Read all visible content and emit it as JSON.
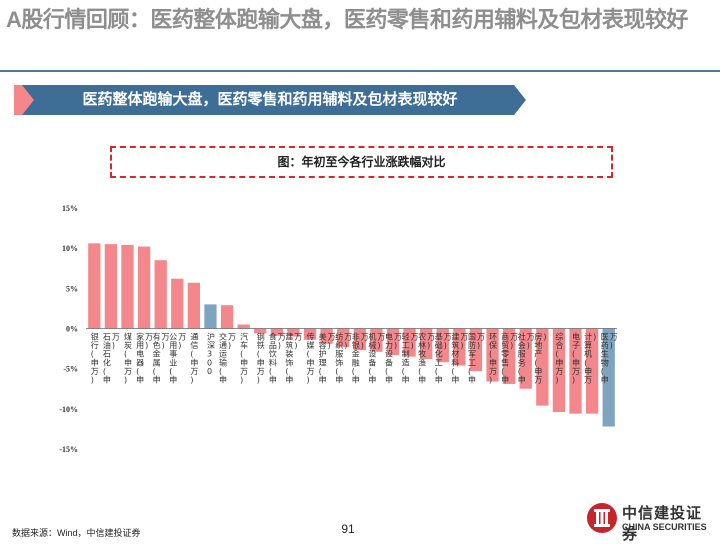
{
  "page": {
    "title": "A股行情回顾：医药整体跑输大盘，医药零售和药用辅料及包材表现较好",
    "banner": "医药整体跑输大盘，医药零售和药用辅料及包材表现较好",
    "source": "数据来源：Wind，中信建投证券",
    "page_number": "91",
    "logo_cn": "中信建投证券",
    "logo_en": "CHINA SECURITIES",
    "colors": {
      "banner": "#3e6e95",
      "banner_accent": "#f4878b",
      "bar_default": "#f4878b",
      "bar_highlight": "#7ea4c0",
      "title_dash": "#d9262b"
    }
  },
  "chart_data": {
    "type": "bar",
    "title": "图：年初至今各行业涨跌幅对比",
    "ylim": [
      -15,
      15
    ],
    "yticks": [
      15,
      10,
      5,
      0,
      -5,
      -10,
      -15
    ],
    "ytick_labels": [
      "15%",
      "10%",
      "5%",
      "0%",
      "-5%",
      "-10%",
      "-15%"
    ],
    "grid": false,
    "categories": [
      "银行(申万)",
      "石油石化(申万)",
      "煤炭(申万)",
      "家用电器(申万)",
      "有色金属(申万)",
      "公用事业(申万)",
      "通信(申万)",
      "沪深300",
      "交通运输(申万)",
      "汽车(申万)",
      "钢铁(申万)",
      "食品饮料(申万)",
      "建筑装饰(申万)",
      "传媒(申万)",
      "美容护理(申万)",
      "纺织服饰(申万)",
      "非银金融(申万)",
      "机械设备(申万)",
      "电力设备(申万)",
      "轻工制造(申万)",
      "农林牧渔(申万)",
      "基础化工(申万)",
      "建筑材料(申万)",
      "国防军工(申万)",
      "环保(申万)",
      "商贸零售(申万)",
      "社会服务(申万)",
      "房地产(申万)",
      "综合(申万)",
      "电子(申万)",
      "计算机(申万)",
      "医药生物(申万)"
    ],
    "values": [
      10.6,
      10.5,
      10.4,
      10.2,
      8.5,
      6.2,
      5.7,
      3.0,
      2.9,
      0.5,
      -0.6,
      -0.9,
      -1.0,
      -1.4,
      -1.9,
      -2.3,
      -2.7,
      -2.9,
      -3.3,
      -3.5,
      -3.8,
      -4.2,
      -4.6,
      -5.3,
      -6.6,
      -6.9,
      -7.5,
      -9.6,
      -10.4,
      -10.6,
      -10.6,
      -12.2
    ],
    "highlight": [
      "沪深300",
      "医药生物(申万)"
    ]
  }
}
